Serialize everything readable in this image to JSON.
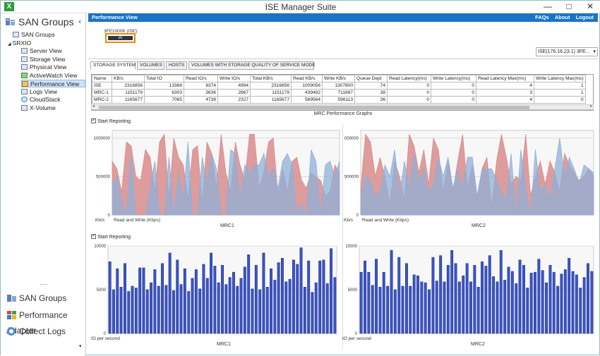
{
  "app": {
    "title": "ISE Manager Suite",
    "icon_letter": "X",
    "minimize": "—",
    "maximize": "□",
    "close": "✕"
  },
  "sidebar": {
    "header": "SAN Groups",
    "collapse": "‹",
    "tree": [
      {
        "label": "SAN Groups",
        "level": 0
      },
      {
        "label": "SRXIO",
        "level": 1
      },
      {
        "label": "Server View",
        "level": 2
      },
      {
        "label": "Storage View",
        "level": 2
      },
      {
        "label": "Physical View",
        "level": 2
      },
      {
        "label": "ActiveWatch View",
        "level": 2
      },
      {
        "label": "Performance View",
        "level": 2,
        "selected": true
      },
      {
        "label": "Logs View",
        "level": 2
      },
      {
        "label": "CloudStack",
        "level": 2
      },
      {
        "label": "X-Volume",
        "level": 2
      }
    ],
    "bottom_nav": [
      {
        "label": "SAN Groups",
        "icon": "san-groups-icon"
      },
      {
        "label": "Performance Adapter",
        "icon": "performance-adapter-icon"
      },
      {
        "label": "Collect Logs",
        "icon": "collect-logs-icon"
      }
    ],
    "scroll_down": "▾"
  },
  "main": {
    "header_title": "Performance View",
    "links": [
      "FAQs",
      "About",
      "Logout"
    ],
    "device_label": "3FE1000K (ISE)",
    "device_text": "⁂",
    "system_select": "ISE(176.16.23.1) 3FE...",
    "select_arrow": "▾",
    "tabs": [
      "STORAGE SYSTEM",
      "VOLUMES",
      "HOSTS",
      "VOLUMES WITH STORAGE QUALITY OF SERVICE MODE"
    ],
    "table": {
      "columns": [
        "Name",
        "KB/s",
        "Total IO",
        "Read IO/s",
        "Write IO/s",
        "Total KB/s",
        "Read KB/s",
        "Write KB/s",
        "Queue Dept",
        "Read Latency(ms)",
        "Write Latency(ms)",
        "Read Latency Max(ms)",
        "Write Latency Max(ms)"
      ],
      "rows": [
        [
          "ISE",
          "2316856",
          "13368",
          "8374",
          "4994",
          "2316856",
          "1009056",
          "1307800",
          "74",
          "0",
          "0",
          "4",
          "1"
        ],
        [
          "MRC-1",
          "1151179",
          "6303",
          "3636",
          "2667",
          "1151179",
          "439492",
          "711687",
          "38",
          "0",
          "0",
          "3",
          "1"
        ],
        [
          "MRC-2",
          "1165677",
          "7065",
          "4738",
          "2327",
          "1165677",
          "569564",
          "596113",
          "36",
          "0",
          "0",
          "4",
          "0"
        ]
      ]
    },
    "scroll_left": "◂",
    "scroll_right": "▸",
    "graphs_title": "MRC Performance Graphs",
    "start_reporting": "Start Reporting"
  },
  "colors": {
    "header_blue": "#1a74c5",
    "read_red": "#d98c8c",
    "write_blue": "#8fb0d8",
    "bar_dark": "#1f2f8a",
    "bar_light": "#3b55c9"
  },
  "chart_data": [
    {
      "type": "area",
      "title": "MRC1",
      "ylabel": "Kb/s",
      "xlabel": "Read and Write (Kbps)",
      "ylim": [
        0,
        1100000
      ],
      "yticks": [
        "0",
        "500000",
        "1000000"
      ],
      "legend": "none",
      "series": [
        {
          "color": "#d98c8c",
          "values": [
            700000,
            600000,
            300000,
            950000,
            900000,
            500000,
            450000,
            850000,
            750000,
            300000,
            950000,
            1050000,
            200000,
            1000000,
            750000,
            650000,
            200000,
            850000,
            900000,
            150000,
            950000,
            800000,
            350000,
            1050000,
            550000,
            300000,
            950000,
            650000,
            450000,
            1050000,
            1050000,
            350000,
            550000,
            950000,
            1000000,
            250000,
            600000,
            300000,
            700000,
            750000,
            450000,
            350000,
            550000,
            500000,
            450000,
            250000,
            300000,
            650000,
            550000
          ]
        },
        {
          "color": "#8fb0d8",
          "values": [
            400000,
            500000,
            200000,
            0,
            800000,
            0,
            0,
            0,
            350000,
            700000,
            0,
            0,
            750000,
            0,
            550000,
            200000,
            950000,
            0,
            0,
            750000,
            400000,
            800000,
            600000,
            0,
            0,
            850000,
            800000,
            200000,
            650000,
            550000,
            650000,
            650000,
            800000,
            500000,
            600000,
            350000,
            700000,
            800000,
            650000,
            0,
            150000,
            0,
            850000,
            700000,
            0,
            650000,
            700000,
            500000,
            700000
          ]
        }
      ]
    },
    {
      "type": "area",
      "title": "MRC2",
      "ylabel": "Kb/s",
      "xlabel": "Read and Write (Kbps)",
      "ylim": [
        0,
        1100000
      ],
      "yticks": [
        "0",
        "500000",
        "1000000"
      ],
      "legend": "none",
      "series": [
        {
          "color": "#d98c8c",
          "values": [
            350000,
            1050000,
            950000,
            500000,
            750000,
            500000,
            150000,
            700000,
            500000,
            200000,
            1050000,
            900000,
            550000,
            850000,
            400000,
            1000000,
            850000,
            300000,
            700000,
            300000,
            700000,
            1050000,
            350000,
            650000,
            200000,
            600000,
            750000,
            100000,
            700000,
            1050000,
            750000,
            400000,
            500000,
            450000,
            1050000,
            250000,
            500000,
            700000,
            400000,
            700000,
            550000,
            300000,
            800000,
            650000,
            550000,
            450000,
            500000,
            600000,
            500000
          ]
        },
        {
          "color": "#8fb0d8",
          "values": [
            250000,
            500000,
            450000,
            250000,
            300000,
            650000,
            500000,
            850000,
            250000,
            700000,
            350000,
            800000,
            450000,
            600000,
            300000,
            400000,
            750000,
            500000,
            750000,
            350000,
            600000,
            350000,
            750000,
            750000,
            250000,
            600000,
            600000,
            600000,
            450000,
            300000,
            200000,
            800000,
            0,
            850000,
            350000,
            0,
            850000,
            300000,
            400000,
            200000,
            600000,
            1000000,
            500000,
            750000,
            600000,
            400000,
            650000,
            600000,
            550000
          ]
        }
      ]
    },
    {
      "type": "bar",
      "title": "MRC1",
      "ylabel": "IO per second",
      "ylim": [
        0,
        10000
      ],
      "yticks": [
        "0",
        "5000",
        "10000"
      ],
      "legend": "none",
      "values": [
        8200,
        5000,
        7400,
        5300,
        8000,
        4800,
        5400,
        5200,
        7500,
        7500,
        5000,
        5800,
        7300,
        5400,
        8000,
        5500,
        9200,
        4900,
        8400,
        5600,
        7400,
        4800,
        6300,
        7300,
        5100,
        7900,
        6300,
        9200,
        7700,
        5800,
        7800,
        5600,
        6400,
        7000,
        5400,
        6300,
        7600,
        9000,
        5100,
        7800,
        5000,
        9200,
        5300,
        7400,
        6100,
        8100,
        8600,
        5900,
        6200,
        8400,
        7900,
        9800,
        5300,
        8300,
        4700,
        5800,
        8300,
        8400,
        5700,
        9700,
        6400
      ]
    },
    {
      "type": "bar",
      "title": "MRC2",
      "ylabel": "IO per second",
      "ylim": [
        0,
        10000
      ],
      "yticks": [
        "0",
        "5000",
        "10000"
      ],
      "legend": "none",
      "values": [
        7000,
        8300,
        7000,
        5500,
        8500,
        5300,
        7000,
        5400,
        9500,
        5000,
        8700,
        5400,
        8000,
        5400,
        6700,
        6600,
        5900,
        5800,
        5000,
        8700,
        6000,
        8900,
        5900,
        7800,
        9500,
        8000,
        5900,
        6600,
        8000,
        5900,
        7800,
        5300,
        8200,
        7700,
        8900,
        6500,
        5900,
        9500,
        6100,
        7600,
        7100,
        5700,
        8400,
        7800,
        5200,
        6900,
        7000,
        8500,
        7200,
        5800,
        7800,
        7000,
        5400,
        6800,
        7300,
        8600,
        7100,
        6700,
        5200,
        6400,
        8000,
        7100
      ]
    }
  ]
}
